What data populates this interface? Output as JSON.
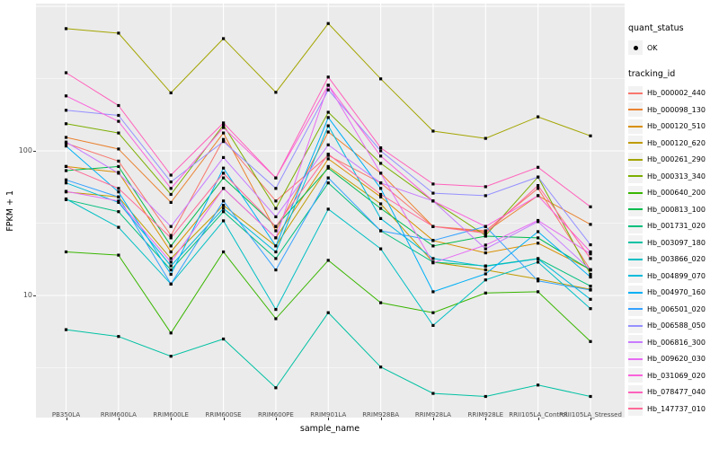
{
  "figure": {
    "y_axis": {
      "label": "FPKM + 1",
      "tick_labels": [
        "100",
        "10"
      ]
    },
    "x_axis": {
      "label": "sample_name"
    },
    "legend": {
      "quant_status": {
        "title": "quant_status",
        "items": [
          {
            "label": "OK"
          }
        ]
      },
      "tracking_id": {
        "title": "tracking_id"
      }
    },
    "colors": {
      "panel_background": "#EBEBEB",
      "grid": "#FFFFFF",
      "axis_text": "#4D4D4D",
      "point": "#000000",
      "legend_key_background": "#F2F2F2"
    }
  },
  "chart_data": {
    "type": "line",
    "x": [
      "PB350LA",
      "RRIM600LA",
      "RRIM600LE",
      "RRIM600SE",
      "RRIM600PE",
      "RRIM901LA",
      "RRIM928BA",
      "RRIM928LA",
      "RRIM928LE",
      "RRII105LA_Control",
      "RRII105LA_Stressed"
    ],
    "xlabel": "sample_name",
    "ylabel": "FPKM + 1",
    "yscale": "log10",
    "yticks": [
      10,
      100
    ],
    "ylim": [
      1.4,
      1050
    ],
    "grid": "white major gridlines at decades, minor at log midpoints, gray panel",
    "legend_position": "right",
    "point_marker": "black point (quant_status = OK)",
    "series": [
      {
        "name": "Hb_000002_440",
        "color": "#F8766D",
        "values": [
          113,
          85,
          26,
          120,
          45,
          93,
          60,
          30,
          28,
          55,
          15
        ]
      },
      {
        "name": "Hb_000098_130",
        "color": "#EA8331",
        "values": [
          124,
          103,
          44,
          133,
          28,
          135,
          70,
          30,
          27.5,
          49,
          31
        ]
      },
      {
        "name": "Hb_000120_510",
        "color": "#D89000",
        "values": [
          78,
          71,
          20,
          55,
          25,
          88,
          48,
          24,
          19.7,
          23,
          15.1
        ]
      },
      {
        "name": "Hb_000120_620",
        "color": "#C09B00",
        "values": [
          52,
          48,
          18,
          42,
          22,
          78,
          43,
          17,
          15,
          13,
          11
        ]
      },
      {
        "name": "Hb_000261_290",
        "color": "#A3A500",
        "values": [
          700,
          652,
          252,
          598,
          254,
          760,
          315,
          137,
          122,
          172,
          127
        ]
      },
      {
        "name": "Hb_000313_340",
        "color": "#7CAE00",
        "values": [
          154,
          133,
          50,
          151,
          40,
          185,
          82,
          45,
          26,
          66,
          14
        ]
      },
      {
        "name": "Hb_000640_200",
        "color": "#39B600",
        "values": [
          20,
          19,
          5.5,
          20,
          6.9,
          17.5,
          8.9,
          7.6,
          10.4,
          10.6,
          4.8
        ]
      },
      {
        "name": "Hb_000813_100",
        "color": "#00BB4E",
        "values": [
          73,
          78,
          22,
          65,
          30,
          76,
          40,
          22,
          25.7,
          25,
          15
        ]
      },
      {
        "name": "Hb_001731_020",
        "color": "#00BF7D",
        "values": [
          46,
          38,
          15,
          38,
          18,
          60,
          28,
          17,
          16,
          18,
          11.6
        ]
      },
      {
        "name": "Hb_003097_180",
        "color": "#00C1A3",
        "values": [
          5.8,
          5.2,
          3.8,
          5.0,
          2.3,
          7.6,
          3.2,
          2.1,
          2.0,
          2.4,
          2.0
        ]
      },
      {
        "name": "Hb_003866_020",
        "color": "#00BFC4",
        "values": [
          46.5,
          29.6,
          12,
          32.8,
          8,
          39.5,
          21,
          6.2,
          12.8,
          17,
          8.1
        ]
      },
      {
        "name": "Hb_004899_070",
        "color": "#00BBDA",
        "values": [
          60,
          44,
          16,
          40,
          20,
          149,
          34,
          18,
          15.9,
          17.9,
          9.4
        ]
      },
      {
        "name": "Hb_004970_160",
        "color": "#00B0F6",
        "values": [
          108,
          52,
          14,
          76,
          22,
          170,
          55,
          10.6,
          14.1,
          27.6,
          13.4
        ]
      },
      {
        "name": "Hb_006501_020",
        "color": "#35A2FF",
        "values": [
          63,
          48,
          12,
          45,
          15,
          65,
          28,
          24,
          30,
          12.6,
          10.9
        ]
      },
      {
        "name": "Hb_006588_050",
        "color": "#9590FF",
        "values": [
          191,
          176,
          61,
          116,
          55,
          264,
          100,
          51,
          49,
          66,
          22.4
        ]
      },
      {
        "name": "Hb_006816_300",
        "color": "#C77CFF",
        "values": [
          115,
          70,
          30,
          90,
          35,
          110,
          60,
          45,
          21,
          32.4,
          15
        ]
      },
      {
        "name": "Hb_009620_030",
        "color": "#E76BF3",
        "values": [
          52.5,
          45,
          17,
          55,
          25,
          284,
          70,
          16.8,
          22.3,
          33,
          19.4
        ]
      },
      {
        "name": "Hb_031069_020",
        "color": "#FA62DB",
        "values": [
          240,
          160,
          55,
          145,
          65,
          285,
          92,
          45,
          30,
          49,
          20
        ]
      },
      {
        "name": "Hb_078477_040",
        "color": "#FF62BC",
        "values": [
          347,
          206,
          68,
          156,
          65,
          324,
          105,
          59,
          56.5,
          77,
          41
        ]
      },
      {
        "name": "Hb_147737_010",
        "color": "#FF6A98",
        "values": [
          78,
          55,
          25,
          70,
          30,
          95,
          50,
          30,
          27,
          57.6,
          18
        ]
      }
    ]
  }
}
